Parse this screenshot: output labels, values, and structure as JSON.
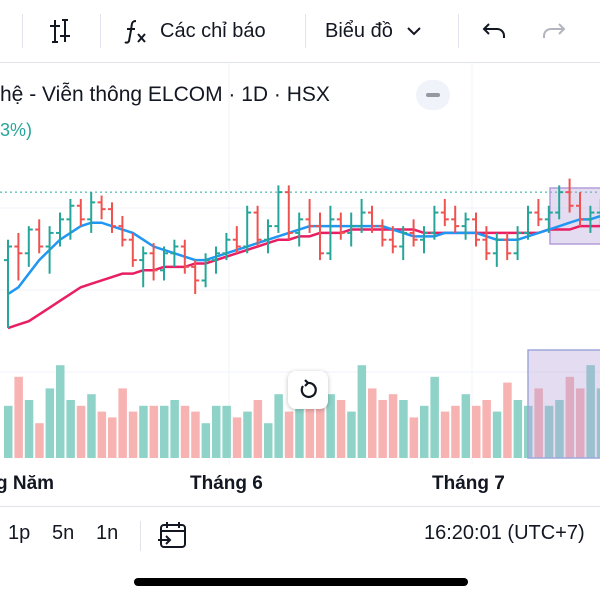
{
  "toolbar": {
    "indicators_label": "Các chỉ báo",
    "chart_type_label": "Biểu đồ"
  },
  "legend": {
    "title": "hệ - Viễn thông ELCOM · 1D · HSX",
    "change": "3%)"
  },
  "time_axis": {
    "labels": [
      "g Năm",
      "Tháng 6",
      "Tháng 7"
    ]
  },
  "bottom_bar": {
    "ranges": [
      "1p",
      "5n",
      "1n"
    ],
    "clock": "16:20:01 (UTC+7)"
  },
  "colors": {
    "up": "#26a69a",
    "down": "#ef5350",
    "ma_fast": "#2196f3",
    "ma_slow": "#e91e63",
    "volume_up": "#8fd3c8",
    "volume_down": "#f7b3b2",
    "selection": "#b39ddb"
  },
  "chart_data": {
    "type": "ohlc",
    "price_level_line": 100,
    "bars": [
      {
        "o": 80,
        "h": 86,
        "l": 60,
        "c": 84
      },
      {
        "o": 84,
        "h": 88,
        "l": 74,
        "c": 82
      },
      {
        "o": 82,
        "h": 90,
        "l": 78,
        "c": 89
      },
      {
        "o": 89,
        "h": 92,
        "l": 82,
        "c": 84
      },
      {
        "o": 84,
        "h": 90,
        "l": 76,
        "c": 88
      },
      {
        "o": 88,
        "h": 94,
        "l": 84,
        "c": 92
      },
      {
        "o": 92,
        "h": 98,
        "l": 86,
        "c": 96
      },
      {
        "o": 96,
        "h": 98,
        "l": 90,
        "c": 92
      },
      {
        "o": 92,
        "h": 100,
        "l": 88,
        "c": 97
      },
      {
        "o": 97,
        "h": 99,
        "l": 92,
        "c": 95
      },
      {
        "o": 95,
        "h": 97,
        "l": 88,
        "c": 90
      },
      {
        "o": 90,
        "h": 93,
        "l": 84,
        "c": 86
      },
      {
        "o": 86,
        "h": 88,
        "l": 78,
        "c": 80
      },
      {
        "o": 80,
        "h": 84,
        "l": 72,
        "c": 82
      },
      {
        "o": 82,
        "h": 85,
        "l": 74,
        "c": 77
      },
      {
        "o": 77,
        "h": 84,
        "l": 74,
        "c": 82
      },
      {
        "o": 82,
        "h": 86,
        "l": 78,
        "c": 84
      },
      {
        "o": 84,
        "h": 86,
        "l": 76,
        "c": 78
      },
      {
        "o": 78,
        "h": 80,
        "l": 70,
        "c": 74
      },
      {
        "o": 74,
        "h": 82,
        "l": 72,
        "c": 80
      },
      {
        "o": 80,
        "h": 84,
        "l": 76,
        "c": 82
      },
      {
        "o": 82,
        "h": 88,
        "l": 80,
        "c": 86
      },
      {
        "o": 86,
        "h": 90,
        "l": 82,
        "c": 84
      },
      {
        "o": 84,
        "h": 96,
        "l": 82,
        "c": 94
      },
      {
        "o": 94,
        "h": 96,
        "l": 84,
        "c": 86
      },
      {
        "o": 86,
        "h": 92,
        "l": 82,
        "c": 90
      },
      {
        "o": 90,
        "h": 102,
        "l": 88,
        "c": 100
      },
      {
        "o": 100,
        "h": 102,
        "l": 86,
        "c": 88
      },
      {
        "o": 88,
        "h": 94,
        "l": 84,
        "c": 92
      },
      {
        "o": 92,
        "h": 98,
        "l": 88,
        "c": 90
      },
      {
        "o": 90,
        "h": 94,
        "l": 80,
        "c": 82
      },
      {
        "o": 82,
        "h": 96,
        "l": 80,
        "c": 92
      },
      {
        "o": 92,
        "h": 94,
        "l": 86,
        "c": 88
      },
      {
        "o": 88,
        "h": 94,
        "l": 84,
        "c": 90
      },
      {
        "o": 90,
        "h": 98,
        "l": 88,
        "c": 94
      },
      {
        "o": 94,
        "h": 96,
        "l": 88,
        "c": 90
      },
      {
        "o": 90,
        "h": 92,
        "l": 84,
        "c": 86
      },
      {
        "o": 86,
        "h": 90,
        "l": 82,
        "c": 84
      },
      {
        "o": 84,
        "h": 90,
        "l": 80,
        "c": 88
      },
      {
        "o": 88,
        "h": 92,
        "l": 84,
        "c": 86
      },
      {
        "o": 86,
        "h": 90,
        "l": 82,
        "c": 88
      },
      {
        "o": 88,
        "h": 96,
        "l": 86,
        "c": 94
      },
      {
        "o": 94,
        "h": 98,
        "l": 90,
        "c": 92
      },
      {
        "o": 92,
        "h": 96,
        "l": 88,
        "c": 90
      },
      {
        "o": 90,
        "h": 94,
        "l": 86,
        "c": 92
      },
      {
        "o": 92,
        "h": 94,
        "l": 84,
        "c": 86
      },
      {
        "o": 86,
        "h": 90,
        "l": 80,
        "c": 82
      },
      {
        "o": 82,
        "h": 88,
        "l": 78,
        "c": 86
      },
      {
        "o": 86,
        "h": 88,
        "l": 80,
        "c": 82
      },
      {
        "o": 82,
        "h": 90,
        "l": 80,
        "c": 88
      },
      {
        "o": 88,
        "h": 96,
        "l": 86,
        "c": 94
      },
      {
        "o": 94,
        "h": 98,
        "l": 90,
        "c": 92
      },
      {
        "o": 92,
        "h": 96,
        "l": 88,
        "c": 94
      },
      {
        "o": 94,
        "h": 102,
        "l": 92,
        "c": 100
      },
      {
        "o": 100,
        "h": 104,
        "l": 94,
        "c": 96
      },
      {
        "o": 96,
        "h": 100,
        "l": 90,
        "c": 92
      },
      {
        "o": 92,
        "h": 96,
        "l": 88,
        "c": 94
      },
      {
        "o": 94,
        "h": 98,
        "l": 90,
        "c": 96
      }
    ],
    "ma_fast": [
      70,
      72,
      76,
      80,
      83,
      86,
      88,
      90,
      91,
      91,
      90,
      89,
      88,
      86,
      84,
      83,
      82,
      81,
      80,
      80,
      81,
      82,
      83,
      84,
      85,
      86,
      87,
      88,
      89,
      90,
      90,
      90,
      90,
      90,
      90,
      90,
      90,
      89,
      88,
      87,
      87,
      87,
      88,
      88,
      88,
      88,
      87,
      86,
      86,
      86,
      87,
      88,
      89,
      90,
      91,
      92,
      92,
      93
    ],
    "ma_slow": [
      60,
      61,
      62,
      64,
      66,
      68,
      70,
      72,
      73,
      74,
      75,
      76,
      76,
      77,
      77,
      78,
      78,
      78,
      79,
      79,
      80,
      81,
      82,
      83,
      84,
      85,
      86,
      86,
      87,
      87,
      88,
      88,
      88,
      89,
      89,
      89,
      89,
      89,
      89,
      89,
      88,
      88,
      88,
      88,
      88,
      88,
      88,
      88,
      88,
      88,
      88,
      88,
      89,
      89,
      89,
      90,
      90,
      90
    ],
    "volume": [
      9,
      14,
      10,
      6,
      12,
      16,
      10,
      9,
      11,
      8,
      7,
      12,
      8,
      9,
      9,
      9,
      10,
      9,
      8,
      6,
      9,
      9,
      7,
      8,
      10,
      6,
      11,
      8,
      12,
      10,
      9,
      11,
      10,
      8,
      16,
      12,
      10,
      11,
      10,
      7,
      9,
      14,
      8,
      9,
      11,
      9,
      10,
      8,
      13,
      10,
      9,
      12,
      9,
      10,
      14,
      12,
      16,
      12
    ],
    "ylim": [
      55,
      108
    ]
  }
}
